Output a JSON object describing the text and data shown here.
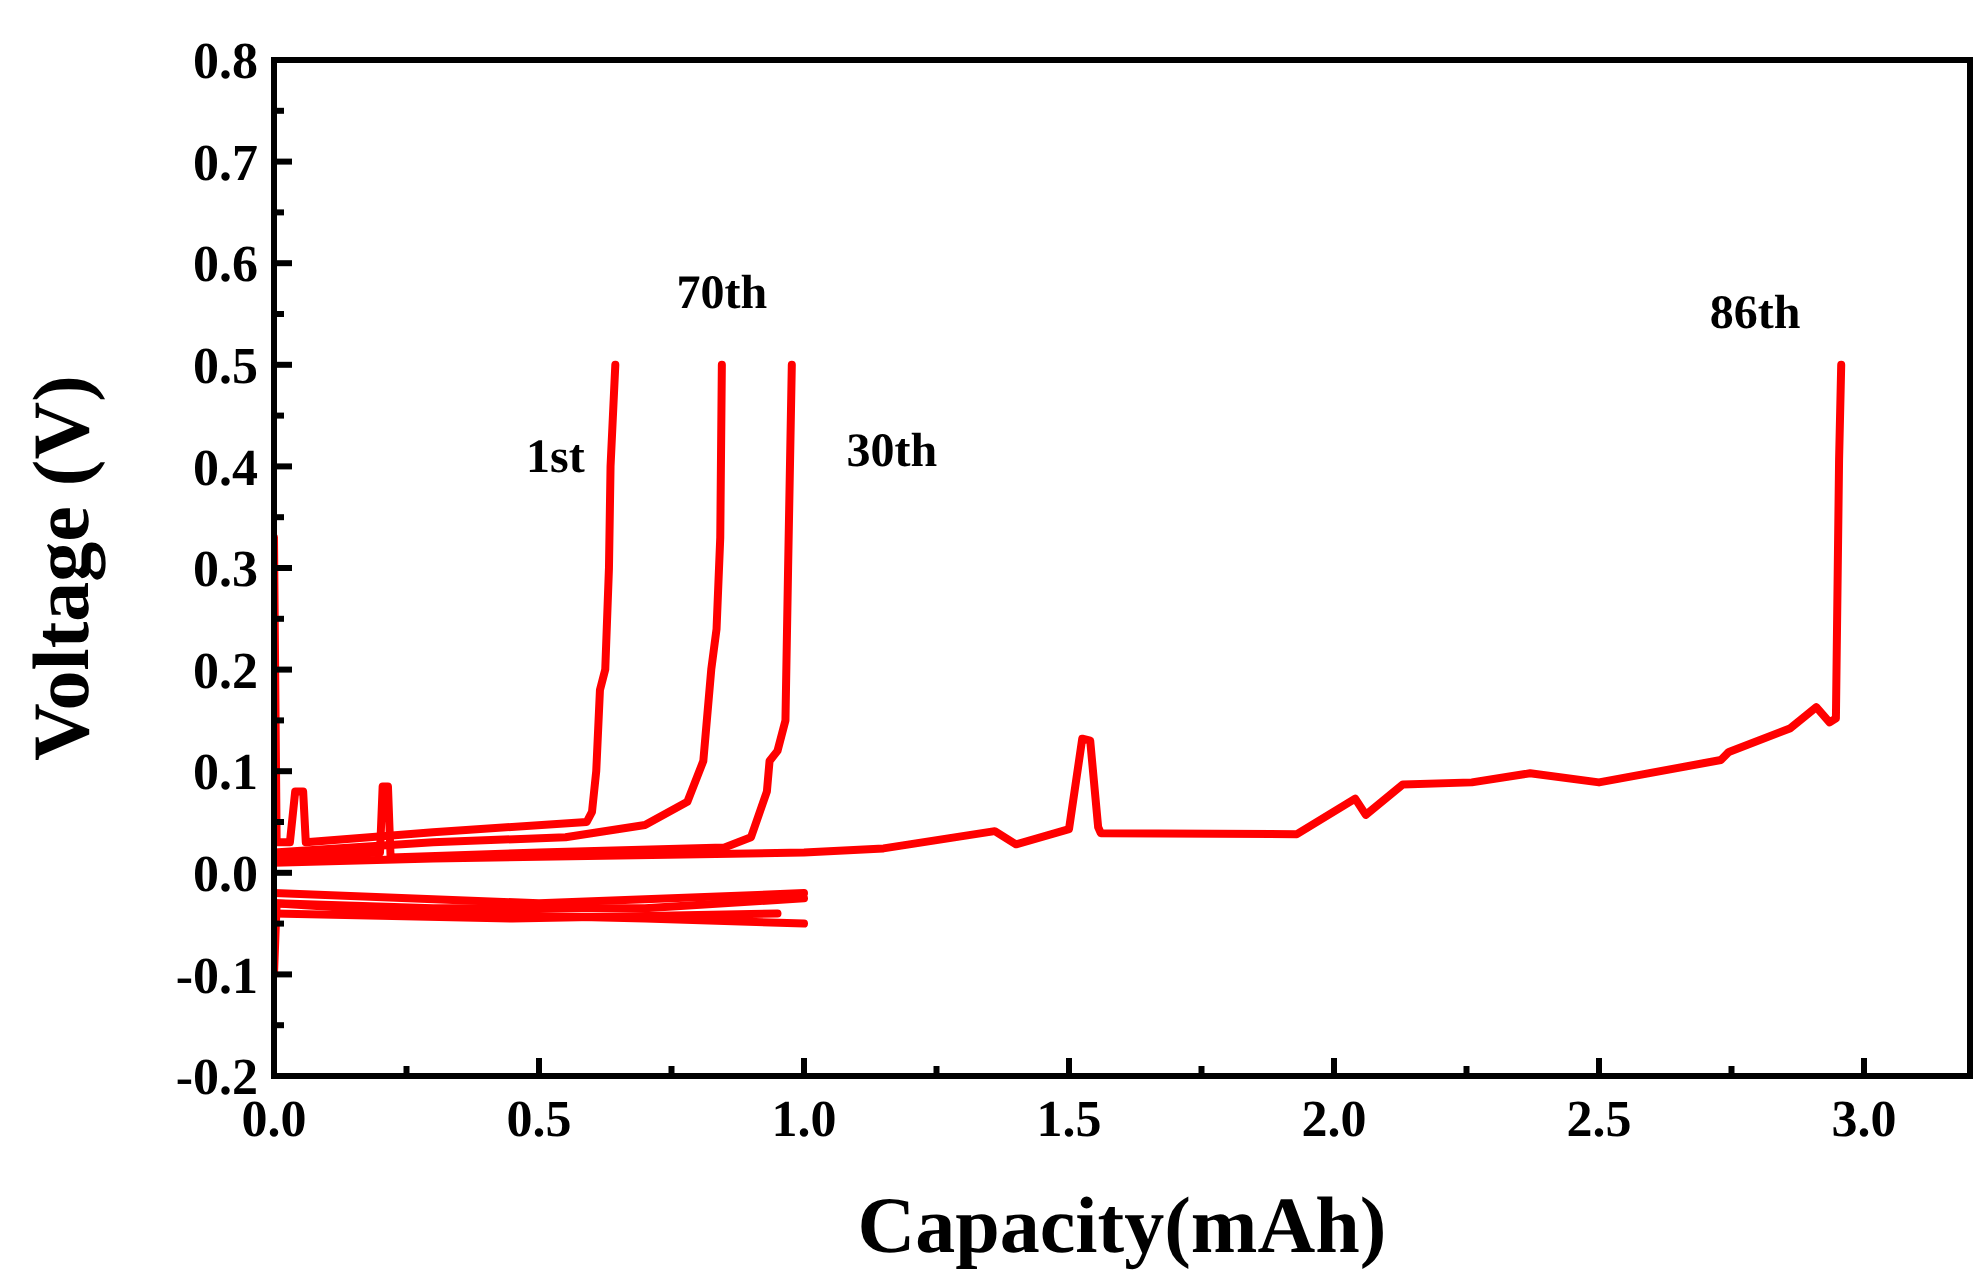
{
  "chart_data": {
    "type": "line",
    "xlabel": "Capacity(mAh)",
    "ylabel": "Voltage (V)",
    "xlim": [
      0,
      3.2
    ],
    "ylim": [
      -0.2,
      0.8
    ],
    "xticks": [
      {
        "value": 0,
        "label": "0.0"
      },
      {
        "value": 0.25,
        "label": null
      },
      {
        "value": 0.5,
        "label": "0.5"
      },
      {
        "value": 0.75,
        "label": null
      },
      {
        "value": 1,
        "label": "1.0"
      },
      {
        "value": 1.25,
        "label": null
      },
      {
        "value": 1.5,
        "label": "1.5"
      },
      {
        "value": 1.75,
        "label": null
      },
      {
        "value": 2,
        "label": "2.0"
      },
      {
        "value": 2.25,
        "label": null
      },
      {
        "value": 2.5,
        "label": "2.5"
      },
      {
        "value": 2.75,
        "label": null
      },
      {
        "value": 3,
        "label": "3.0"
      }
    ],
    "yticks": [
      {
        "value": -0.2,
        "label": "-0.2"
      },
      {
        "value": -0.15,
        "label": null
      },
      {
        "value": -0.1,
        "label": "-0.1"
      },
      {
        "value": -0.05,
        "label": null
      },
      {
        "value": 0,
        "label": "0.0"
      },
      {
        "value": 0.05,
        "label": null
      },
      {
        "value": 0.1,
        "label": "0.1"
      },
      {
        "value": 0.15,
        "label": null
      },
      {
        "value": 0.2,
        "label": "0.2"
      },
      {
        "value": 0.25,
        "label": null
      },
      {
        "value": 0.3,
        "label": "0.3"
      },
      {
        "value": 0.35,
        "label": null
      },
      {
        "value": 0.4,
        "label": "0.4"
      },
      {
        "value": 0.45,
        "label": null
      },
      {
        "value": 0.5,
        "label": "0.5"
      },
      {
        "value": 0.55,
        "label": null
      },
      {
        "value": 0.6,
        "label": "0.6"
      },
      {
        "value": 0.65,
        "label": null
      },
      {
        "value": 0.7,
        "label": "0.7"
      },
      {
        "value": 0.75,
        "label": null
      },
      {
        "value": 0.8,
        "label": "0.8"
      }
    ],
    "grid": false,
    "marker": "none",
    "line_style": "solid",
    "series": [
      {
        "color": "#ff0000",
        "x": [
          0,
          0.005,
          0.3,
          0.7,
          1.0
        ],
        "values": [
          -0.1,
          -0.03,
          -0.035,
          -0.035,
          -0.025
        ]
      },
      {
        "color": "#ff0000",
        "x": [
          0,
          0.3,
          0.7,
          1.0
        ],
        "values": [
          -0.03,
          -0.04,
          -0.045,
          -0.05
        ]
      },
      {
        "color": "#ff0000",
        "x": [
          0,
          0.5,
          1.0
        ],
        "values": [
          -0.02,
          -0.03,
          -0.02
        ]
      },
      {
        "color": "#ff0000",
        "x": [
          0,
          0.45,
          0.95
        ],
        "values": [
          -0.04,
          -0.045,
          -0.04
        ]
      },
      {
        "name": "1st",
        "color": "#ff0000",
        "x": [
          0,
          0.005,
          0.03,
          0.04,
          0.055,
          0.06,
          0.3,
          0.59,
          0.6,
          0.608,
          0.615,
          0.625,
          0.632,
          0.635,
          0.644
        ],
        "values": [
          0.33,
          0.03,
          0.03,
          0.08,
          0.08,
          0.03,
          0.04,
          0.05,
          0.06,
          0.1,
          0.18,
          0.2,
          0.3,
          0.4,
          0.5
        ]
      },
      {
        "name": "70th",
        "color": "#ff0000",
        "x": [
          0,
          0.3,
          0.55,
          0.7,
          0.78,
          0.81,
          0.825,
          0.835,
          0.842,
          0.845
        ],
        "values": [
          0.02,
          0.03,
          0.035,
          0.047,
          0.07,
          0.11,
          0.2,
          0.24,
          0.33,
          0.5
        ]
      },
      {
        "name": "30th",
        "color": "#ff0000",
        "x": [
          0,
          0.2,
          0.205,
          0.215,
          0.22,
          0.5,
          0.85,
          0.9,
          0.93,
          0.935,
          0.95,
          0.965,
          0.97,
          0.977
        ],
        "values": [
          0.015,
          0.02,
          0.085,
          0.085,
          0.015,
          0.02,
          0.025,
          0.035,
          0.08,
          0.11,
          0.12,
          0.15,
          0.3,
          0.5
        ]
      },
      {
        "name": "86th",
        "color": "#ff0000",
        "x": [
          0,
          0.3,
          1.0,
          1.15,
          1.36,
          1.4,
          1.5,
          1.525,
          1.54,
          1.555,
          1.56,
          1.93,
          2.04,
          2.06,
          2.13,
          2.26,
          2.37,
          2.5,
          2.73,
          2.745,
          2.86,
          2.91,
          2.935,
          2.947,
          2.953,
          2.957
        ],
        "values": [
          0.01,
          0.014,
          0.02,
          0.024,
          0.041,
          0.028,
          0.043,
          0.132,
          0.13,
          0.045,
          0.039,
          0.038,
          0.073,
          0.057,
          0.087,
          0.089,
          0.098,
          0.089,
          0.111,
          0.119,
          0.142,
          0.163,
          0.148,
          0.152,
          0.407,
          0.5
        ]
      }
    ]
  }
}
